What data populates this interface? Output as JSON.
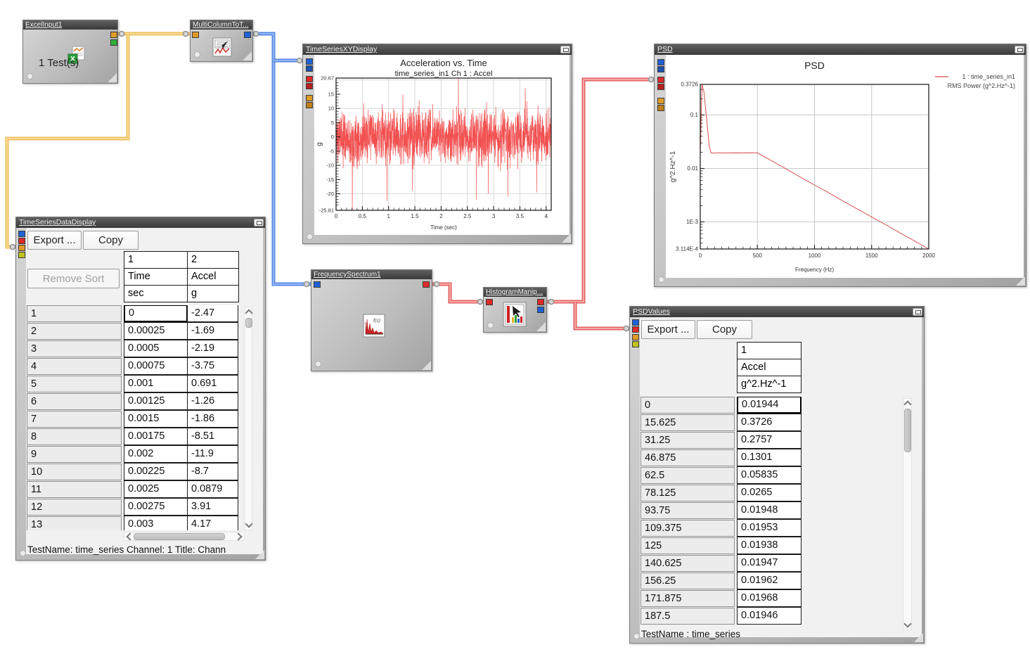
{
  "colors": {
    "wire-yellow-outer": "#edbd59",
    "wire-yellow-inner": "#f9da92",
    "wire-blue-outer": "#4d82e3",
    "wire-blue-inner": "#93b6f4",
    "wire-red-outer": "#e25b5b",
    "wire-red-inner": "#f6a6a6",
    "port-blue": "#1f62d5",
    "port-blue2": "#1c4fae",
    "port-red": "#dc2a2a",
    "port-red2": "#b81f1f",
    "port-orange": "#e09a28",
    "port-orange2": "#c07f1a",
    "port-yellow": "#c2c21f",
    "port-green": "#2fae38",
    "series-red": "#f25050",
    "psd-line": "#d94f4f"
  },
  "nodes": {
    "excel_input": {
      "title": "ExcelInput1",
      "label": "1 Test(s)"
    },
    "multi_column": {
      "title": "MultiColumnToT..."
    },
    "frequency_spectrum": {
      "title": "FrequencySpectrum1"
    },
    "histogram_manip": {
      "title": "HistogramManip..."
    }
  },
  "windows": {
    "time_series_xy": {
      "title": "TimeSeriesXYDisplay"
    },
    "psd": {
      "title": "PSD"
    },
    "time_series_data": {
      "title": "TimeSeriesDataDisplay",
      "export_label": "Export ...",
      "copy_label": "Copy",
      "remove_sort_label": "Remove Sort",
      "col_numbers": [
        "1",
        "2"
      ],
      "col_names": [
        "Time",
        "Accel"
      ],
      "col_units": [
        "sec",
        "g"
      ],
      "rows": [
        [
          "1",
          "0",
          "-2.47"
        ],
        [
          "2",
          "0.00025",
          "-1.69"
        ],
        [
          "3",
          "0.0005",
          "-2.19"
        ],
        [
          "4",
          "0.00075",
          "-3.75"
        ],
        [
          "5",
          "0.001",
          "0.691"
        ],
        [
          "6",
          "0.00125",
          "-1.26"
        ],
        [
          "7",
          "0.0015",
          "-1.86"
        ],
        [
          "8",
          "0.00175",
          "-8.51"
        ],
        [
          "9",
          "0.002",
          "-11.9"
        ],
        [
          "10",
          "0.00225",
          "-8.7"
        ],
        [
          "11",
          "0.0025",
          "0.0879"
        ],
        [
          "12",
          "0.00275",
          "3.91"
        ],
        [
          "13",
          "0.003",
          "4.17"
        ]
      ],
      "status": "TestName: time_series  Channel: 1  Title: Chann"
    },
    "psd_values": {
      "title": "PSDValues",
      "export_label": "Export ...",
      "copy_label": "Copy",
      "col_numbers": [
        "1"
      ],
      "col_names": [
        "Accel"
      ],
      "col_units": [
        "g^2.Hz^-1"
      ],
      "rows": [
        [
          "0",
          "0.01944"
        ],
        [
          "15.625",
          "0.3726"
        ],
        [
          "31.25",
          "0.2757"
        ],
        [
          "46.875",
          "0.1301"
        ],
        [
          "62.5",
          "0.05835"
        ],
        [
          "78.125",
          "0.0265"
        ],
        [
          "93.75",
          "0.01948"
        ],
        [
          "109.375",
          "0.01953"
        ],
        [
          "125",
          "0.01938"
        ],
        [
          "140.625",
          "0.01947"
        ],
        [
          "156.25",
          "0.01962"
        ],
        [
          "171.875",
          "0.01968"
        ],
        [
          "187.5",
          "0.01946"
        ]
      ],
      "status": "TestName : time_series"
    }
  },
  "chart_data": [
    {
      "type": "line",
      "title": "Acceleration vs. Time",
      "subtitle": "time_series_in1  Ch 1 : Accel",
      "xlabel": "Time (sec)",
      "ylabel": "g",
      "xlim": [
        0,
        4.096
      ],
      "ylim": [
        -25.81,
        20.67
      ],
      "x_tick_values": [
        0,
        0.5,
        1,
        1.5,
        2,
        2.5,
        3,
        3.5,
        4
      ],
      "x_tick_labels": [
        "0",
        "0.5",
        "1",
        "1.5",
        "2",
        "2.5",
        "3",
        "3.5",
        "4"
      ],
      "y_tick_values": [
        20.67,
        15,
        10,
        5,
        0,
        -5,
        -10,
        -15,
        -20,
        -25.81
      ],
      "y_tick_labels": [
        "20.67",
        "15",
        "10",
        "5",
        "0",
        "-5",
        "-10",
        "-15",
        "-20",
        "-25.81"
      ],
      "grid_x_step": 0.5,
      "grid_y_lines": [
        20,
        10,
        0,
        -10,
        -20
      ],
      "grid": true,
      "legend_position": "none",
      "series_color": "#f25050",
      "series": "broadband random acceleration noise, dense band ~±13 g, extremes +20.67 / -25.81 g",
      "noise": {
        "seed": 11,
        "n": 1350,
        "band": 13.8,
        "spike_prob": 0.02,
        "spike_gain": 1.7,
        "forced": [
          [
            0.31,
            -25.8
          ],
          [
            0.97,
            -22.5
          ],
          [
            1.45,
            -19.0
          ],
          [
            2.33,
            20.6
          ],
          [
            2.67,
            -22.0
          ],
          [
            2.9,
            -20.0
          ],
          [
            3.27,
            -21.0
          ],
          [
            3.82,
            -19.5
          ]
        ]
      }
    },
    {
      "type": "line",
      "title": "PSD",
      "xlabel": "Frequency (Hz)",
      "ylabel": "g^2.Hz^-1",
      "y_scale": "log",
      "xlim": [
        0,
        2000
      ],
      "ylim": [
        0.0003114,
        0.3726
      ],
      "x_tick_values": [
        0,
        500,
        1000,
        1500,
        2000
      ],
      "x_tick_labels": [
        "0",
        "500",
        "1000",
        "1500",
        "2000"
      ],
      "y_tick_values": [
        0.3726,
        0.1,
        0.01,
        0.001,
        0.0003114
      ],
      "y_tick_labels": [
        "0.3726",
        "0.1",
        "0.01",
        "1E-3",
        "3.114E-4"
      ],
      "grid": true,
      "legend_position": "top-right",
      "legend": [
        "1 : time_series_in1",
        "RMS Power (g^2.Hz^-1)"
      ],
      "series_color": "#d94f4f",
      "points": [
        [
          0,
          0.01944
        ],
        [
          15.625,
          0.3726
        ],
        [
          31.25,
          0.2757
        ],
        [
          46.875,
          0.1301
        ],
        [
          62.5,
          0.05835
        ],
        [
          78.125,
          0.0265
        ],
        [
          93.75,
          0.01948
        ],
        [
          109.375,
          0.01953
        ],
        [
          125,
          0.01938
        ],
        [
          140.625,
          0.01947
        ],
        [
          156.25,
          0.01962
        ],
        [
          171.875,
          0.01968
        ],
        [
          187.5,
          0.01946
        ],
        [
          250,
          0.0195
        ],
        [
          312.5,
          0.0196
        ],
        [
          375,
          0.0195
        ],
        [
          437.5,
          0.0196
        ],
        [
          500,
          0.0195
        ],
        [
          625,
          0.0139
        ],
        [
          750,
          0.0098
        ],
        [
          875,
          0.0069
        ],
        [
          1000,
          0.0049
        ],
        [
          1125,
          0.0035
        ],
        [
          1250,
          0.00246
        ],
        [
          1375,
          0.00174
        ],
        [
          1500,
          0.00124
        ],
        [
          1625,
          0.00088
        ],
        [
          1750,
          0.00062
        ],
        [
          1875,
          0.00044
        ],
        [
          2000,
          0.0003114
        ]
      ]
    }
  ]
}
